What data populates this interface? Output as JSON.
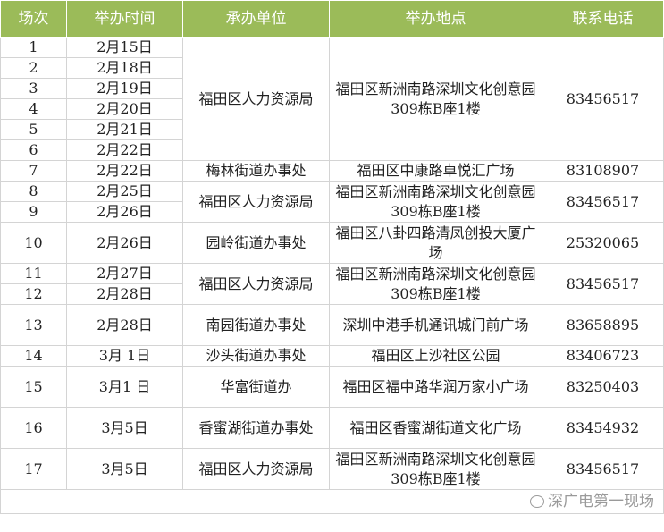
{
  "headers": [
    "场次",
    "举办时间",
    "承办单位",
    "举办地点",
    "联系电话"
  ],
  "rows": [
    {
      "no": "1",
      "date": "2月15日"
    },
    {
      "no": "2",
      "date": "2月18日"
    },
    {
      "no": "3",
      "date": "2月19日"
    },
    {
      "no": "4",
      "date": "2月20日"
    },
    {
      "no": "5",
      "date": "2月21日"
    },
    {
      "no": "6",
      "date": "2月22日"
    },
    {
      "no": "7",
      "date": "2月22日",
      "unit": "梅林街道办事处",
      "place": "福田区中康路卓悦汇广场",
      "phone": "83108907"
    },
    {
      "no": "8",
      "date": "2月25日"
    },
    {
      "no": "9",
      "date": "2月26日"
    },
    {
      "no": "10",
      "date": "2月26日",
      "unit": "园岭街道办事处",
      "place": "福田区八卦四路清凤创投大厦广场",
      "phone": "25320065"
    },
    {
      "no": "11",
      "date": "2月27日"
    },
    {
      "no": "12",
      "date": "2月28日"
    },
    {
      "no": "13",
      "date": "2月28日",
      "unit": "南园街道办事处",
      "place": "深圳中港手机通讯城门前广场",
      "phone": "83658895"
    },
    {
      "no": "14",
      "date": "3月  1日",
      "unit": "沙头街道办事处",
      "place": "福田区上沙社区公园",
      "phone": "83406723"
    },
    {
      "no": "15",
      "date": "3月1  日",
      "unit": "华富街道办",
      "place": "福田区福中路华润万家小广场",
      "phone": "83250403"
    },
    {
      "no": "16",
      "date": "3月5日",
      "unit": "香蜜湖街道办事处",
      "place": "福田区香蜜湖街道文化广场",
      "phone": "83454932"
    },
    {
      "no": "17",
      "date": "3月5日",
      "unit": "福田区人力资源局",
      "place": "福田区新洲南路深圳文化创意园309栋B座1楼",
      "phone": "83456517"
    }
  ],
  "merged": {
    "unit": "福田区人力资源局",
    "place": "福田区新洲南路深圳文化创意园309栋B座1楼",
    "phone": "83456517"
  },
  "watermark": "深广电第一现场",
  "colors": {
    "header_bg": "#9bbb59",
    "header_text": "#ffffff"
  }
}
